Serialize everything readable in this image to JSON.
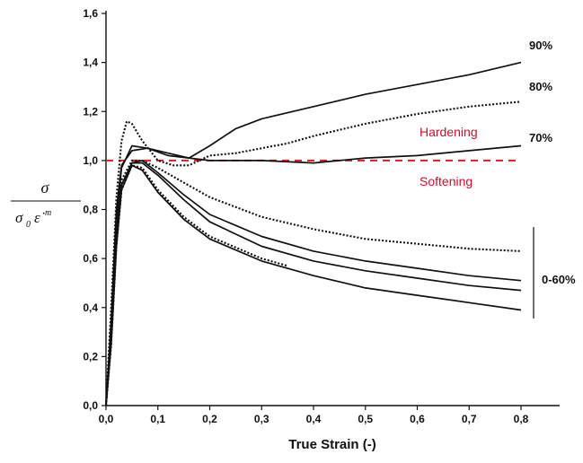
{
  "chart_data": {
    "type": "line",
    "xlabel": "True Strain (-)",
    "ylabel": {
      "numerator": "σ",
      "denominator_base": "σ",
      "denominator_sub": "0",
      "denominator_rate": "ε̇",
      "denominator_sup": "m"
    },
    "xlim": [
      0.0,
      0.85
    ],
    "ylim": [
      0.0,
      1.6
    ],
    "x_ticks": [
      "0,0",
      "0,1",
      "0,2",
      "0,3",
      "0,4",
      "0,5",
      "0,6",
      "0,7",
      "0,8"
    ],
    "y_ticks": [
      "0,0",
      "0,2",
      "0,4",
      "0,6",
      "0,8",
      "1,0",
      "1,2",
      "1,4",
      "1,6"
    ],
    "grid": false,
    "reference_line": {
      "y": 1.0,
      "color": "#d62020",
      "style": "dashed"
    },
    "region_labels": [
      {
        "text": "Hardening",
        "x": 0.5,
        "y": 1.1
      },
      {
        "text": "Softening",
        "x": 0.5,
        "y": 0.9
      }
    ],
    "series_labels": {
      "s90": "90%",
      "s80": "80%",
      "s70": "70%",
      "s0_60": "0-60%"
    },
    "series": [
      {
        "id": "s90",
        "style": "solid",
        "points": [
          [
            0,
            0
          ],
          [
            0.01,
            0.35
          ],
          [
            0.02,
            0.8
          ],
          [
            0.03,
            0.98
          ],
          [
            0.05,
            1.04
          ],
          [
            0.08,
            1.05
          ],
          [
            0.12,
            1.03
          ],
          [
            0.16,
            1.01
          ],
          [
            0.2,
            1.06
          ],
          [
            0.25,
            1.13
          ],
          [
            0.3,
            1.17
          ],
          [
            0.4,
            1.22
          ],
          [
            0.5,
            1.27
          ],
          [
            0.6,
            1.31
          ],
          [
            0.7,
            1.35
          ],
          [
            0.8,
            1.4
          ]
        ]
      },
      {
        "id": "s80",
        "style": "dotted",
        "points": [
          [
            0,
            0
          ],
          [
            0.01,
            0.4
          ],
          [
            0.02,
            0.85
          ],
          [
            0.03,
            1.08
          ],
          [
            0.04,
            1.16
          ],
          [
            0.05,
            1.15
          ],
          [
            0.07,
            1.08
          ],
          [
            0.1,
            1.0
          ],
          [
            0.13,
            0.98
          ],
          [
            0.16,
            0.98
          ],
          [
            0.2,
            1.02
          ],
          [
            0.25,
            1.03
          ],
          [
            0.3,
            1.05
          ],
          [
            0.35,
            1.07
          ],
          [
            0.4,
            1.1
          ],
          [
            0.5,
            1.15
          ],
          [
            0.6,
            1.19
          ],
          [
            0.7,
            1.22
          ],
          [
            0.8,
            1.24
          ]
        ]
      },
      {
        "id": "s70",
        "style": "solid",
        "points": [
          [
            0,
            0
          ],
          [
            0.01,
            0.3
          ],
          [
            0.02,
            0.75
          ],
          [
            0.03,
            0.97
          ],
          [
            0.05,
            1.06
          ],
          [
            0.08,
            1.05
          ],
          [
            0.12,
            1.02
          ],
          [
            0.2,
            1.0
          ],
          [
            0.3,
            1.0
          ],
          [
            0.4,
            0.99
          ],
          [
            0.5,
            1.01
          ],
          [
            0.6,
            1.02
          ],
          [
            0.7,
            1.04
          ],
          [
            0.8,
            1.06
          ]
        ]
      },
      {
        "id": "s60a",
        "style": "dotted",
        "points": [
          [
            0,
            0
          ],
          [
            0.01,
            0.3
          ],
          [
            0.02,
            0.7
          ],
          [
            0.03,
            0.92
          ],
          [
            0.05,
            1.0
          ],
          [
            0.07,
            1.0
          ],
          [
            0.1,
            0.97
          ],
          [
            0.15,
            0.91
          ],
          [
            0.2,
            0.85
          ],
          [
            0.3,
            0.77
          ],
          [
            0.4,
            0.72
          ],
          [
            0.5,
            0.68
          ],
          [
            0.6,
            0.66
          ],
          [
            0.7,
            0.64
          ],
          [
            0.8,
            0.63
          ]
        ]
      },
      {
        "id": "s60b",
        "style": "solid",
        "points": [
          [
            0,
            0
          ],
          [
            0.01,
            0.28
          ],
          [
            0.02,
            0.7
          ],
          [
            0.03,
            0.9
          ],
          [
            0.05,
            0.99
          ],
          [
            0.07,
            1.0
          ],
          [
            0.1,
            0.95
          ],
          [
            0.15,
            0.86
          ],
          [
            0.2,
            0.78
          ],
          [
            0.3,
            0.69
          ],
          [
            0.4,
            0.63
          ],
          [
            0.5,
            0.59
          ],
          [
            0.6,
            0.56
          ],
          [
            0.7,
            0.53
          ],
          [
            0.8,
            0.51
          ]
        ]
      },
      {
        "id": "s60c",
        "style": "solid",
        "points": [
          [
            0,
            0
          ],
          [
            0.01,
            0.28
          ],
          [
            0.02,
            0.68
          ],
          [
            0.03,
            0.9
          ],
          [
            0.05,
            0.99
          ],
          [
            0.07,
            0.99
          ],
          [
            0.1,
            0.94
          ],
          [
            0.15,
            0.84
          ],
          [
            0.2,
            0.75
          ],
          [
            0.3,
            0.65
          ],
          [
            0.4,
            0.59
          ],
          [
            0.5,
            0.55
          ],
          [
            0.6,
            0.52
          ],
          [
            0.7,
            0.49
          ],
          [
            0.8,
            0.47
          ]
        ]
      },
      {
        "id": "s60d",
        "style": "dotted",
        "points": [
          [
            0,
            0
          ],
          [
            0.01,
            0.25
          ],
          [
            0.02,
            0.65
          ],
          [
            0.03,
            0.88
          ],
          [
            0.05,
            0.98
          ],
          [
            0.07,
            0.97
          ],
          [
            0.1,
            0.88
          ],
          [
            0.15,
            0.77
          ],
          [
            0.2,
            0.69
          ],
          [
            0.3,
            0.6
          ],
          [
            0.35,
            0.57
          ]
        ]
      },
      {
        "id": "s60e",
        "style": "solid",
        "points": [
          [
            0,
            0
          ],
          [
            0.01,
            0.25
          ],
          [
            0.02,
            0.65
          ],
          [
            0.03,
            0.88
          ],
          [
            0.05,
            0.98
          ],
          [
            0.07,
            0.96
          ],
          [
            0.1,
            0.87
          ],
          [
            0.15,
            0.76
          ],
          [
            0.2,
            0.68
          ],
          [
            0.3,
            0.59
          ],
          [
            0.4,
            0.53
          ],
          [
            0.5,
            0.48
          ],
          [
            0.6,
            0.45
          ],
          [
            0.7,
            0.42
          ],
          [
            0.8,
            0.39
          ]
        ]
      }
    ]
  }
}
